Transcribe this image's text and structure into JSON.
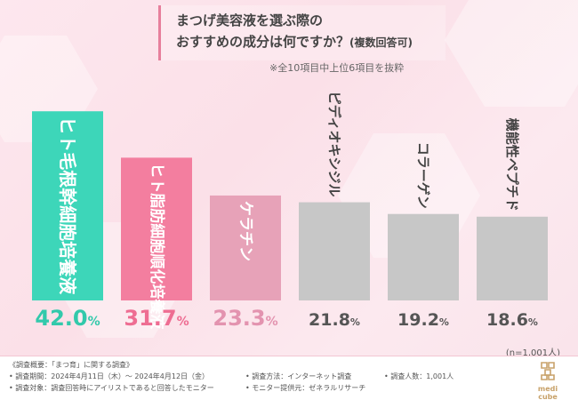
{
  "title": {
    "line1": "まつげ美容液を選ぶ際の",
    "line2_main": "おすすめの成分は何ですか？",
    "line2_small": "(複数回答可)"
  },
  "note": "※全10項目中上位6項目を抜粋",
  "sample_size": "(n=1,001人)",
  "chart_data": {
    "type": "bar",
    "title": "まつげ美容液を選ぶ際のおすすめの成分は何ですか？(複数回答可)",
    "categories": [
      "ヒト毛根幹細胞培養液",
      "ヒト脂肪細胞順化培養液",
      "ケラチン",
      "ピディオキシジル",
      "コラーゲン",
      "機能性ペプチド"
    ],
    "values": [
      42.0,
      31.7,
      23.3,
      21.8,
      19.2,
      18.6
    ],
    "value_labels": [
      "42.0%",
      "31.7%",
      "23.3%",
      "21.8%",
      "19.2%",
      "18.6%"
    ],
    "unit": "%",
    "ylim": [
      0,
      45
    ],
    "colors": [
      "#3dd6b9",
      "#f37e9f",
      "#e7a2b8",
      "#c7c7c7",
      "#c7c7c7",
      "#c7c7c7"
    ],
    "label_colors": [
      "#32c9ab",
      "#ee6d92",
      "#e393af",
      "#555555",
      "#555555",
      "#555555"
    ],
    "xlabel": "",
    "ylabel": ""
  },
  "footer": {
    "overview": "《調査概要：「まつ育」に関する調査》",
    "period": "• 調査期間：2024年4月11日（木）～ 2024年4月12日（金）",
    "target": "• 調査対象：調査回答時にアイリストであると回答したモニター",
    "method": "• 調査方法：インターネット調査",
    "provider": "• モニター提供元：ゼネラルリサーチ",
    "count": "• 調査人数：1,001人"
  },
  "logo": {
    "text": "medi cube"
  }
}
